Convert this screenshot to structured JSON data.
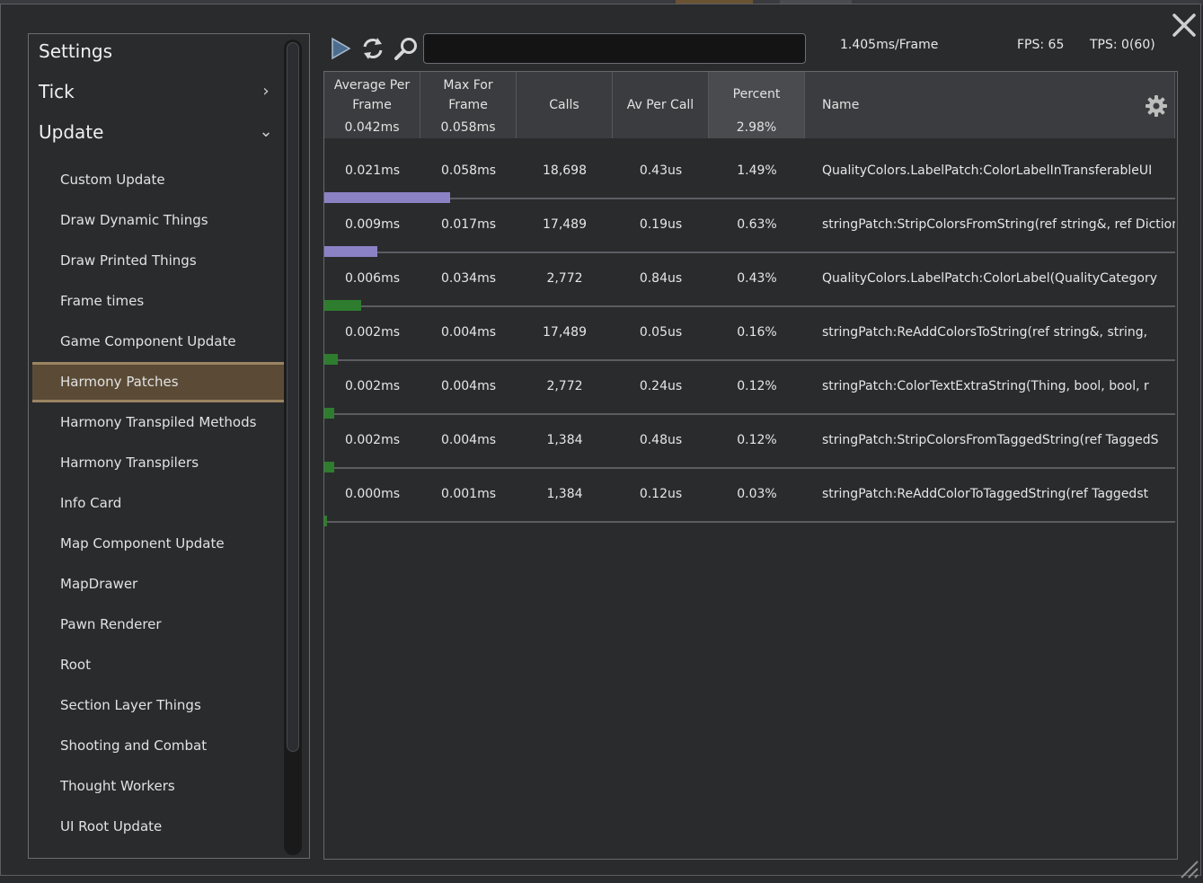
{
  "colors": {
    "bar_purple": "#8b82c6",
    "bar_green": "#2e7d2e",
    "selected_bg": "#5b4b36",
    "selected_border": "#9b8462"
  },
  "sidebar": {
    "headers": [
      {
        "label": "Settings",
        "chevron": ""
      },
      {
        "label": "Tick",
        "chevron": "›"
      },
      {
        "label": "Update",
        "chevron": "⌄"
      }
    ],
    "selected": "Harmony Patches",
    "items": [
      "Custom Update",
      "Draw Dynamic Things",
      "Draw Printed Things",
      "Frame times",
      "Game Component Update",
      "Harmony Patches",
      "Harmony Transpiled Methods",
      "Harmony Transpilers",
      "Info Card",
      "Map Component Update",
      "MapDrawer",
      "Pawn Renderer",
      "Root",
      "Section Layer Things",
      "Shooting and Combat",
      "Thought Workers",
      "UI Root Update"
    ]
  },
  "toolbar": {
    "icons": [
      "play-icon",
      "refresh-icon",
      "search-icon"
    ],
    "search_value": "",
    "frame_time": "1.405ms/Frame",
    "fps": "FPS: 65",
    "tps": "TPS: 0(60)"
  },
  "table": {
    "headers": [
      {
        "title": "Average Per Frame",
        "value": "0.042ms"
      },
      {
        "title": "Max For Frame",
        "value": "0.058ms"
      },
      {
        "title": "Calls",
        "value": ""
      },
      {
        "title": "Av Per Call",
        "value": ""
      },
      {
        "title": "Percent",
        "value": "2.98%"
      },
      {
        "title": "Name",
        "value": ""
      }
    ],
    "rows": [
      {
        "avg": "0.021ms",
        "max": "0.058ms",
        "calls": "18,698",
        "per_call": "0.43us",
        "percent": "1.49%",
        "name": "QualityColors.LabelPatch:ColorLabelInTransferableUI",
        "bar": 0.5,
        "bar_color": "purple"
      },
      {
        "avg": "0.009ms",
        "max": "0.017ms",
        "calls": "17,489",
        "per_call": "0.19us",
        "percent": "0.63%",
        "name": "stringPatch:StripColorsFromString(ref string&, ref Dictionary",
        "bar": 0.21,
        "bar_color": "purple"
      },
      {
        "avg": "0.006ms",
        "max": "0.034ms",
        "calls": "2,772",
        "per_call": "0.84us",
        "percent": "0.43%",
        "name": "QualityColors.LabelPatch:ColorLabel(QualityCategory",
        "bar": 0.145,
        "bar_color": "green"
      },
      {
        "avg": "0.002ms",
        "max": "0.004ms",
        "calls": "17,489",
        "per_call": "0.05us",
        "percent": "0.16%",
        "name": "stringPatch:ReAddColorsToString(ref string&, string, ",
        "bar": 0.054,
        "bar_color": "green"
      },
      {
        "avg": "0.002ms",
        "max": "0.004ms",
        "calls": "2,772",
        "per_call": "0.24us",
        "percent": "0.12%",
        "name": "stringPatch:ColorTextExtraString(Thing, bool, bool, r",
        "bar": 0.04,
        "bar_color": "green"
      },
      {
        "avg": "0.002ms",
        "max": "0.004ms",
        "calls": "1,384",
        "per_call": "0.48us",
        "percent": "0.12%",
        "name": "stringPatch:StripColorsFromTaggedString(ref TaggedS",
        "bar": 0.04,
        "bar_color": "green"
      },
      {
        "avg": "0.000ms",
        "max": "0.001ms",
        "calls": "1,384",
        "per_call": "0.12us",
        "percent": "0.03%",
        "name": "stringPatch:ReAddColorToTaggedString(ref Taggedst",
        "bar": 0.01,
        "bar_color": "green"
      }
    ]
  }
}
